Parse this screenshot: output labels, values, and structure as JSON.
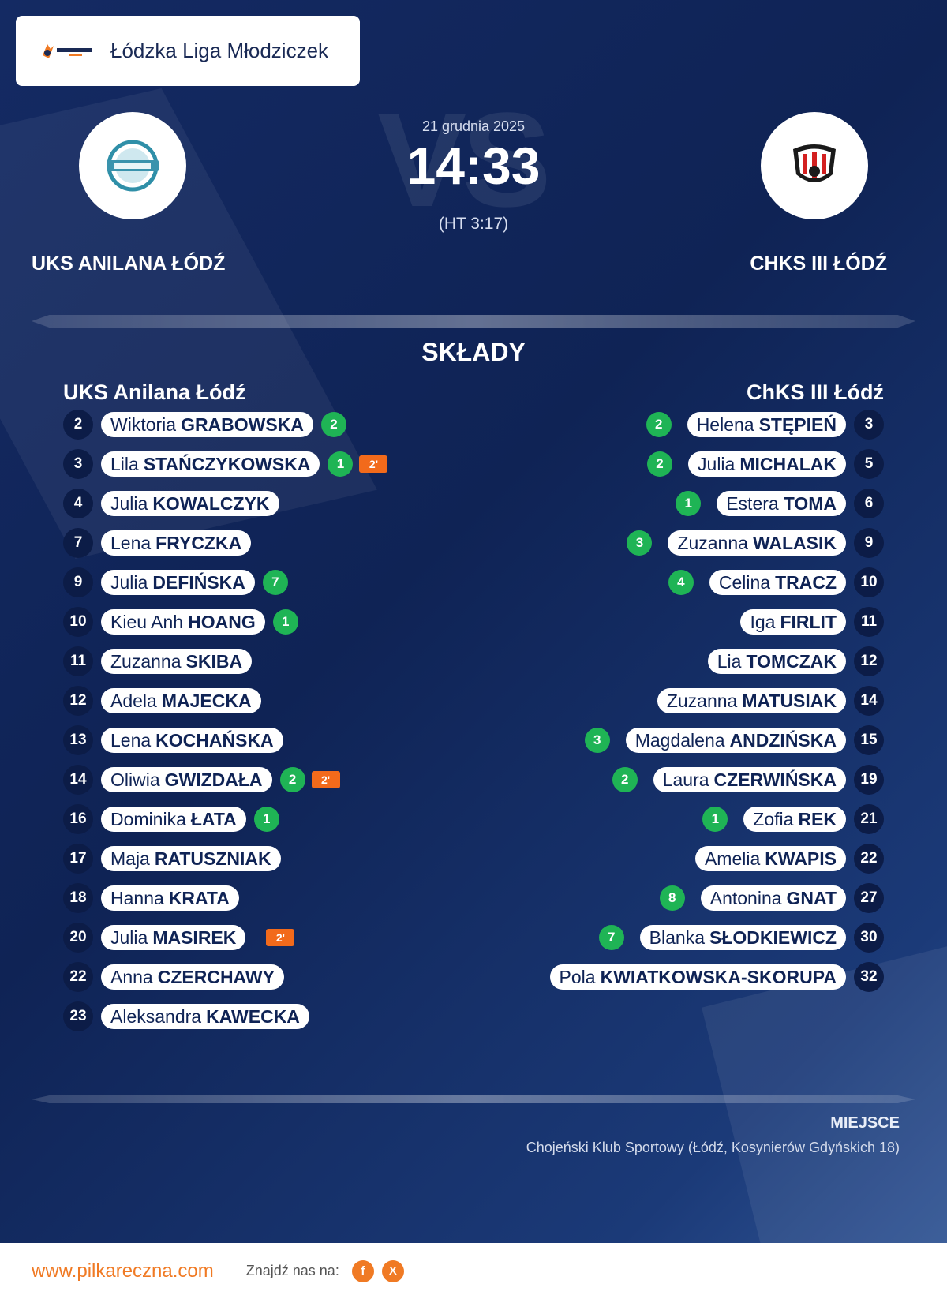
{
  "header": {
    "league_name": "Łódzka Liga Młodziczek",
    "logo_icon": "pilkareczna-logo-icon"
  },
  "match": {
    "date": "21 grudnia 2025",
    "score": "14:33",
    "halftime": "(HT 3:17)",
    "vs_watermark": "VS",
    "home_team": "UKS ANILANA ŁÓDŹ",
    "away_team": "CHKS III ŁÓDŹ"
  },
  "lineups": {
    "title": "SKŁADY",
    "home_title": "UKS Anilana Łódź",
    "away_title": "ChKS III Łódź",
    "home": [
      {
        "num": "2",
        "first": "Wiktoria",
        "last": "GRABOWSKA",
        "goals": "2",
        "susp": ""
      },
      {
        "num": "3",
        "first": "Lila",
        "last": "STAŃCZYKOWSKA",
        "goals": "1",
        "susp": "2'"
      },
      {
        "num": "4",
        "first": "Julia",
        "last": "KOWALCZYK",
        "goals": "",
        "susp": ""
      },
      {
        "num": "7",
        "first": "Lena",
        "last": "FRYCZKA",
        "goals": "",
        "susp": ""
      },
      {
        "num": "9",
        "first": "Julia",
        "last": "DEFIŃSKA",
        "goals": "7",
        "susp": ""
      },
      {
        "num": "10",
        "first": "Kieu Anh",
        "last": "HOANG",
        "goals": "1",
        "susp": ""
      },
      {
        "num": "11",
        "first": "Zuzanna",
        "last": "SKIBA",
        "goals": "",
        "susp": ""
      },
      {
        "num": "12",
        "first": "Adela",
        "last": "MAJECKA",
        "goals": "",
        "susp": ""
      },
      {
        "num": "13",
        "first": "Lena",
        "last": "KOCHAŃSKA",
        "goals": "",
        "susp": ""
      },
      {
        "num": "14",
        "first": "Oliwia",
        "last": "GWIZDAŁA",
        "goals": "2",
        "susp": "2'"
      },
      {
        "num": "16",
        "first": "Dominika",
        "last": "ŁATA",
        "goals": "1",
        "susp": ""
      },
      {
        "num": "17",
        "first": "Maja",
        "last": "RATUSZNIAK",
        "goals": "",
        "susp": ""
      },
      {
        "num": "18",
        "first": "Hanna",
        "last": "KRATA",
        "goals": "",
        "susp": ""
      },
      {
        "num": "20",
        "first": "Julia",
        "last": "MASIREK",
        "goals": "",
        "susp": "2'"
      },
      {
        "num": "22",
        "first": "Anna",
        "last": "CZERCHAWY",
        "goals": "",
        "susp": ""
      },
      {
        "num": "23",
        "first": "Aleksandra",
        "last": "KAWECKA",
        "goals": "",
        "susp": ""
      }
    ],
    "away": [
      {
        "num": "3",
        "first": "Helena",
        "last": "STĘPIEŃ",
        "goals": "2"
      },
      {
        "num": "5",
        "first": "Julia",
        "last": "MICHALAK",
        "goals": "2"
      },
      {
        "num": "6",
        "first": "Estera",
        "last": "TOMA",
        "goals": "1"
      },
      {
        "num": "9",
        "first": "Zuzanna",
        "last": "WALASIK",
        "goals": "3"
      },
      {
        "num": "10",
        "first": "Celina",
        "last": "TRACZ",
        "goals": "4"
      },
      {
        "num": "11",
        "first": "Iga",
        "last": "FIRLIT",
        "goals": ""
      },
      {
        "num": "12",
        "first": "Lia",
        "last": "TOMCZAK",
        "goals": ""
      },
      {
        "num": "14",
        "first": "Zuzanna",
        "last": "MATUSIAK",
        "goals": ""
      },
      {
        "num": "15",
        "first": "Magdalena",
        "last": "ANDZIŃSKA",
        "goals": "3"
      },
      {
        "num": "19",
        "first": "Laura",
        "last": "CZERWIŃSKA",
        "goals": "2"
      },
      {
        "num": "21",
        "first": "Zofia",
        "last": "REK",
        "goals": "1"
      },
      {
        "num": "22",
        "first": "Amelia",
        "last": "KWAPIS",
        "goals": ""
      },
      {
        "num": "27",
        "first": "Antonina",
        "last": "GNAT",
        "goals": "8"
      },
      {
        "num": "30",
        "first": "Blanka",
        "last": "SŁODKIEWICZ",
        "goals": "7"
      },
      {
        "num": "32",
        "first": "Pola",
        "last": "KWIATKOWSKA-SKORUPA",
        "goals": ""
      }
    ]
  },
  "venue": {
    "label": "MIEJSCE",
    "value": "Chojeński Klub Sportowy (Łódź, Kosynierów Gdyńskich 18)"
  },
  "footer": {
    "site": "www.pilkareczna.com",
    "find_us": "Znajdź nas na:",
    "social": [
      "f",
      "X"
    ]
  },
  "colors": {
    "goal_badge": "#1fb455",
    "suspension_badge": "#f26a1b",
    "accent": "#f07a24",
    "background": "#0f2355"
  }
}
